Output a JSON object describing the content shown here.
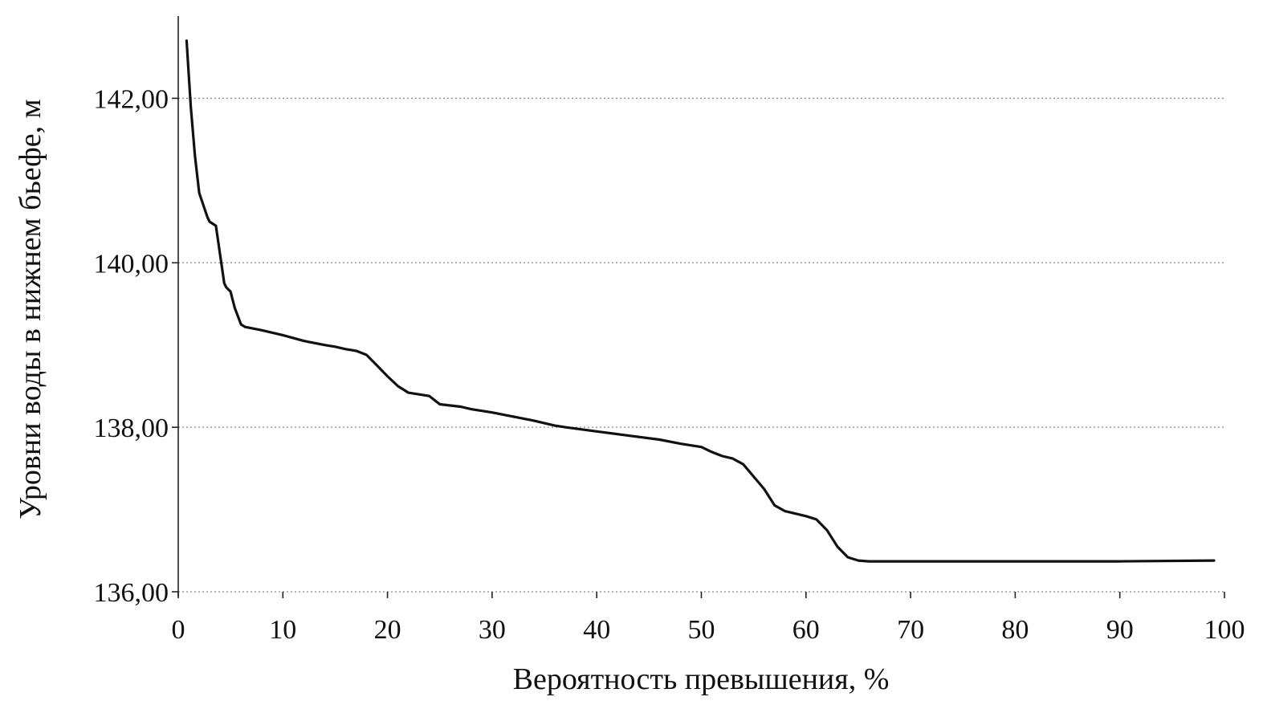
{
  "chart_data": {
    "type": "line",
    "title": "",
    "xlabel": "Вероятность превышения, %",
    "ylabel": "Уровни воды в нижнем бьефе, м",
    "xlim": [
      0,
      100
    ],
    "ylim": [
      136,
      143
    ],
    "x_ticks": [
      0,
      10,
      20,
      30,
      40,
      50,
      60,
      70,
      80,
      90,
      100
    ],
    "x_tick_labels": [
      "0",
      "10",
      "20",
      "30",
      "40",
      "50",
      "60",
      "70",
      "80",
      "90",
      "100"
    ],
    "y_ticks": [
      136,
      138,
      140,
      142
    ],
    "y_tick_labels": [
      "136,00",
      "138,00",
      "140,00",
      "142,00"
    ],
    "grid": {
      "horizontal": true,
      "vertical": false,
      "style": "dotted"
    },
    "legend": "none",
    "series": [
      {
        "color": "#111111",
        "x": [
          0.8,
          1.2,
          1.6,
          2.0,
          2.4,
          2.8,
          3.0,
          3.6,
          4.0,
          4.4,
          4.6,
          5.0,
          5.4,
          6.0,
          6.4,
          8,
          10,
          12,
          14,
          15,
          16,
          17,
          18,
          19,
          20,
          21,
          22,
          24,
          25,
          27,
          28,
          30,
          32,
          34,
          36,
          37,
          40,
          43,
          46,
          48,
          50,
          51,
          52,
          53,
          54,
          55,
          56,
          57,
          58,
          59,
          60,
          61,
          62,
          63,
          64,
          65,
          66,
          70,
          80,
          90,
          99
        ],
        "y": [
          142.7,
          141.9,
          141.3,
          140.85,
          140.7,
          140.55,
          140.5,
          140.45,
          140.1,
          139.75,
          139.7,
          139.65,
          139.45,
          139.25,
          139.22,
          139.18,
          139.12,
          139.05,
          139.0,
          138.98,
          138.95,
          138.93,
          138.88,
          138.75,
          138.62,
          138.5,
          138.42,
          138.38,
          138.28,
          138.25,
          138.22,
          138.18,
          138.13,
          138.08,
          138.02,
          138.0,
          137.95,
          137.9,
          137.85,
          137.8,
          137.76,
          137.7,
          137.65,
          137.62,
          137.55,
          137.4,
          137.25,
          137.05,
          136.98,
          136.95,
          136.92,
          136.88,
          136.75,
          136.55,
          136.42,
          136.38,
          136.37,
          136.37,
          136.37,
          136.37,
          136.38
        ]
      }
    ]
  }
}
